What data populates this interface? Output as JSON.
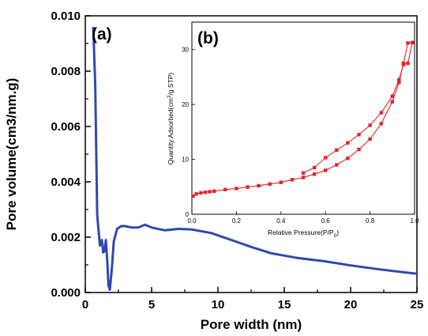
{
  "chart_data": [
    {
      "panel": "(a)",
      "type": "line",
      "xlabel": "Pore width (nm)",
      "ylabel": "Pore volume(cm3/nm.g)",
      "xlim": [
        0,
        25
      ],
      "ylim": [
        0,
        0.01
      ],
      "xticks": [
        0,
        5,
        10,
        15,
        20,
        25
      ],
      "xtick_labels": [
        "0",
        "5",
        "10",
        "15",
        "20",
        "25"
      ],
      "yticks": [
        0,
        0.002,
        0.004,
        0.006,
        0.008,
        0.01
      ],
      "ytick_labels": [
        "0.000",
        "0.002",
        "0.004",
        "0.006",
        "0.008",
        "0.010"
      ],
      "grid": false,
      "color": "#2e4aa8",
      "series": [
        {
          "x": [
            0.6,
            0.75,
            0.9,
            1.1,
            1.25,
            1.35,
            1.45,
            1.55,
            1.65,
            1.75,
            1.85,
            2.0,
            2.15,
            2.4,
            2.7,
            3.0,
            3.5,
            4.0,
            4.5,
            5.0,
            6.0,
            7.0,
            8.0,
            9.5,
            11.0,
            12.5,
            14.0,
            16.0,
            18.0,
            20.0,
            22.0,
            24.0,
            25.0
          ],
          "y": [
            0.0096,
            0.0075,
            0.0028,
            0.0017,
            0.0019,
            0.00145,
            0.0015,
            0.0019,
            0.0012,
            0.00025,
            0.0001,
            0.00085,
            0.00185,
            0.0023,
            0.0024,
            0.0024,
            0.00235,
            0.00235,
            0.00245,
            0.00235,
            0.00225,
            0.0023,
            0.00228,
            0.00215,
            0.0019,
            0.00165,
            0.00142,
            0.00125,
            0.00113,
            0.00098,
            0.00085,
            0.00073,
            0.00068
          ]
        }
      ]
    },
    {
      "panel": "(b)",
      "type": "line",
      "xlabel": "Relative Pressure(P/P",
      "xlabel_subscript": "0",
      "xlabel_suffix": ")",
      "ylabel": "Quantity Adsorbed(cm",
      "ylabel_superscript": "3",
      "ylabel_suffix": "/g STP)",
      "xlim": [
        0,
        1.0
      ],
      "ylim": [
        0,
        35
      ],
      "xticks": [
        0,
        0.2,
        0.4,
        0.6,
        0.8,
        1.0
      ],
      "xtick_labels": [
        "0.0",
        "0.2",
        "0.4",
        "0.6",
        "0.8",
        "1.0"
      ],
      "yticks": [
        0,
        10,
        20,
        30
      ],
      "ytick_labels": [
        "0",
        "10",
        "20",
        "30"
      ],
      "grid": false,
      "color": "#e0262b",
      "marker": "square",
      "series": [
        {
          "x": [
            0.005,
            0.02,
            0.04,
            0.06,
            0.08,
            0.1,
            0.15,
            0.2,
            0.25,
            0.3,
            0.35,
            0.4,
            0.45,
            0.5,
            0.55,
            0.6,
            0.65,
            0.7,
            0.75,
            0.8,
            0.85,
            0.9,
            0.93,
            0.95,
            0.97,
            0.99
          ],
          "y": [
            3.3,
            3.7,
            3.9,
            4.0,
            4.1,
            4.2,
            4.5,
            4.7,
            4.95,
            5.2,
            5.5,
            5.8,
            6.3,
            6.7,
            7.3,
            8.0,
            9.0,
            10.2,
            11.8,
            13.7,
            16.5,
            20.5,
            24.0,
            27.5,
            31.2,
            31.3
          ]
        },
        {
          "x": [
            0.99,
            0.97,
            0.95,
            0.93,
            0.9,
            0.85,
            0.8,
            0.75,
            0.7,
            0.65,
            0.6,
            0.55,
            0.5
          ],
          "y": [
            31.3,
            27.5,
            27.3,
            24.5,
            21.5,
            18.5,
            16.2,
            14.5,
            13.0,
            11.7,
            10.3,
            8.5,
            7.5
          ]
        }
      ]
    }
  ]
}
